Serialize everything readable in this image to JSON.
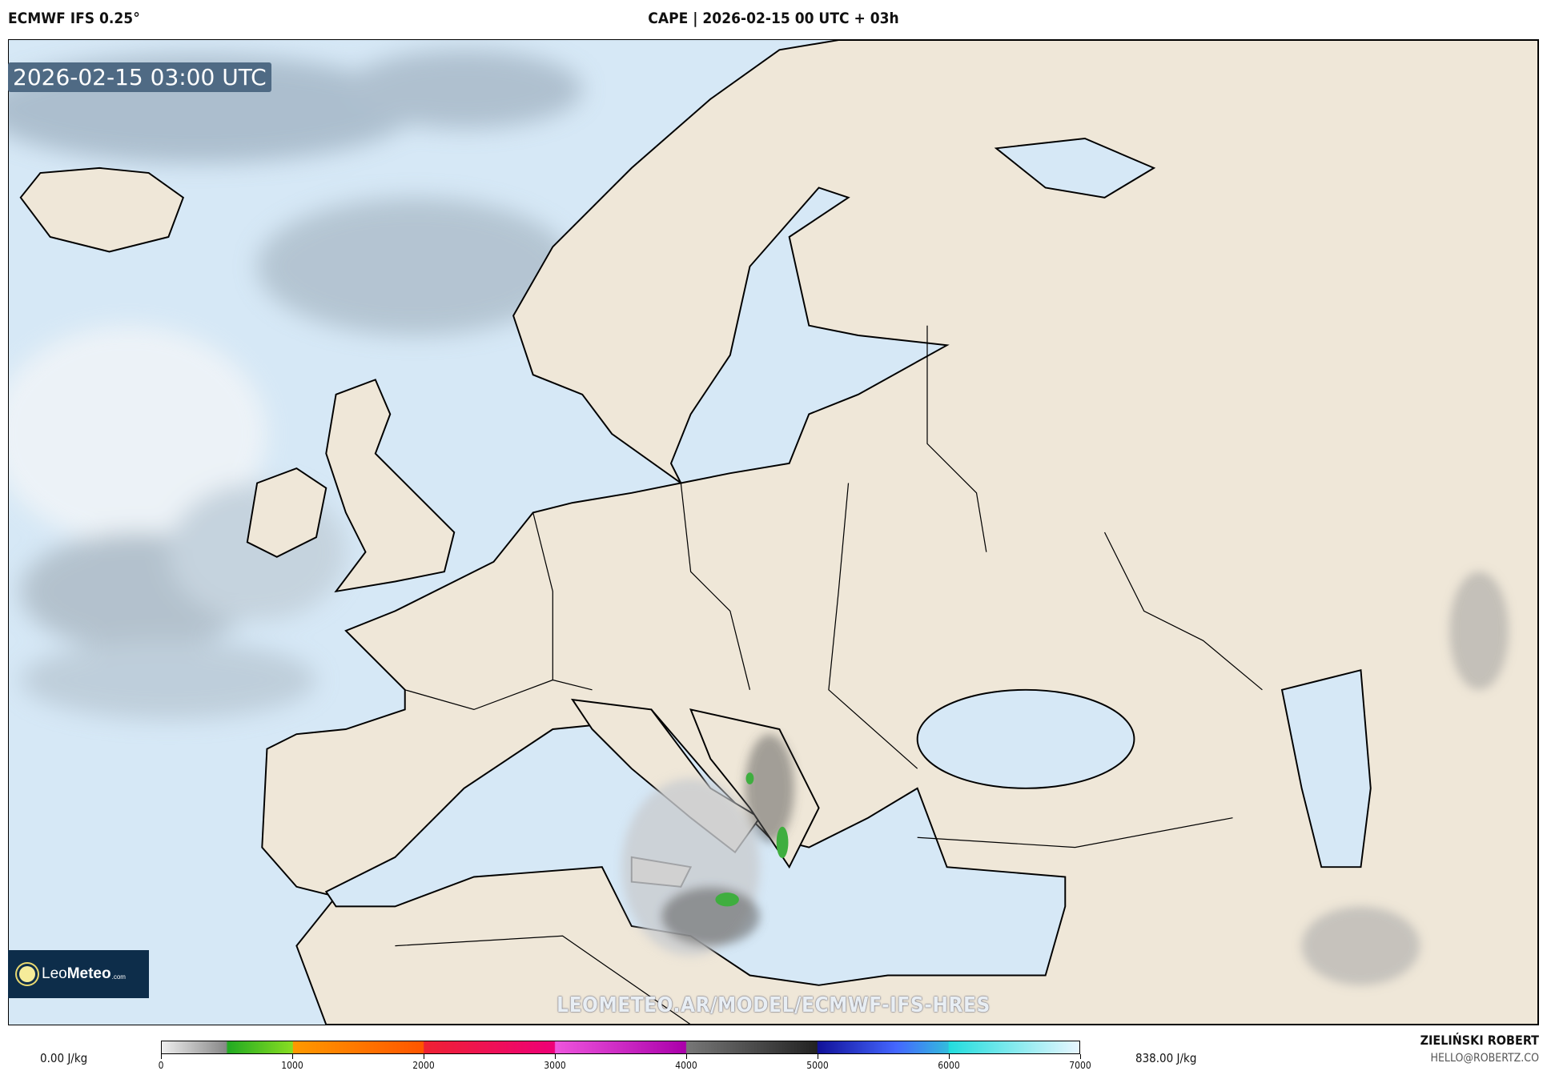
{
  "header": {
    "model": "ECMWF IFS 0.25°",
    "title": "CAPE | 2026-02-15 00 UTC + 03h"
  },
  "map": {
    "valid_time": "2026-02-15 03:00 UTC",
    "watermark_url": "LEOMETEO.AR/MODEL/ECMWF-IFS-HRES",
    "logo": "LeoMeteo.com",
    "colors": {
      "sea": "#d6e8f6",
      "land": "#efe7d8",
      "border": "#000000",
      "cape_low": "#3fae3f"
    }
  },
  "legend": {
    "min_label": "0.00 J/kg",
    "max_label": "838.00 J/kg",
    "ticks": [
      "0",
      "1000",
      "2000",
      "3000",
      "4000",
      "5000",
      "6000",
      "7000"
    ],
    "unit": "J/kg",
    "range": [
      0,
      7000
    ]
  },
  "credits": {
    "author": "ZIELIŃSKI ROBERT",
    "email": "HELLO@ROBERTZ.CO"
  }
}
